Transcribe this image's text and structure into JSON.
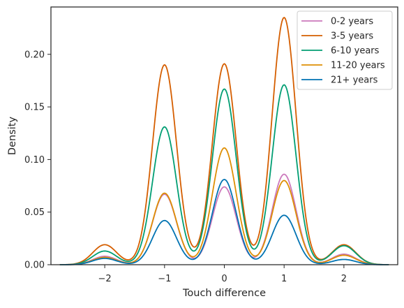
{
  "chart_data": {
    "type": "line",
    "xlabel": "Touch difference",
    "ylabel": "Density",
    "xlim": [
      -2.9,
      2.9
    ],
    "ylim": [
      0,
      0.245
    ],
    "x_ticks": [
      -2,
      -1,
      0,
      1,
      2
    ],
    "x_tick_labels": [
      "−2",
      "−1",
      "0",
      "1",
      "2"
    ],
    "y_ticks": [
      0,
      0.05,
      0.1,
      0.15,
      0.2
    ],
    "y_tick_labels": [
      "0.00",
      "0.05",
      "0.10",
      "0.15",
      "0.20"
    ],
    "grid": false,
    "legend_position": "top-right",
    "peak_x": [
      -2,
      -1,
      0,
      1,
      2
    ],
    "series": [
      {
        "name": "0-2 years",
        "color": "#cc78bc",
        "peaks": [
          0.008,
          0.067,
          0.074,
          0.086,
          0.01
        ]
      },
      {
        "name": "3-5 years",
        "color": "#d55e00",
        "peaks": [
          0.019,
          0.19,
          0.191,
          0.235,
          0.019
        ]
      },
      {
        "name": "6-10 years",
        "color": "#029e73",
        "peaks": [
          0.013,
          0.131,
          0.167,
          0.171,
          0.018
        ]
      },
      {
        "name": "11-20 years",
        "color": "#de8f05",
        "peaks": [
          0.007,
          0.068,
          0.111,
          0.08,
          0.009
        ]
      },
      {
        "name": "21+ years",
        "color": "#0173b2",
        "peaks": [
          0.006,
          0.042,
          0.081,
          0.047,
          0.005
        ]
      }
    ]
  }
}
